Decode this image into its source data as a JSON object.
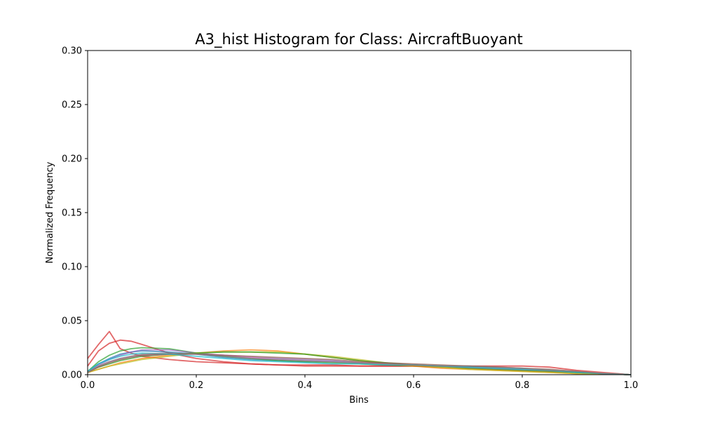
{
  "chart_data": {
    "type": "line",
    "title": "A3_hist Histogram for Class: AircraftBuoyant",
    "xlabel": "Bins",
    "ylabel": "Normalized Frequency",
    "xlim": [
      0,
      1
    ],
    "ylim": [
      0,
      0.3
    ],
    "xticks": [
      "0.0",
      "0.2",
      "0.4",
      "0.6",
      "0.8",
      "1.0"
    ],
    "yticks": [
      "0.00",
      "0.05",
      "0.10",
      "0.15",
      "0.20",
      "0.25",
      "0.30"
    ],
    "grid": false,
    "legend": "none",
    "x": [
      0.0,
      0.02,
      0.04,
      0.06,
      0.08,
      0.1,
      0.15,
      0.2,
      0.25,
      0.3,
      0.35,
      0.4,
      0.45,
      0.5,
      0.55,
      0.6,
      0.65,
      0.7,
      0.75,
      0.8,
      0.85,
      0.9,
      0.95,
      1.0
    ],
    "series": [
      {
        "color": "#d62728",
        "values": [
          0.015,
          0.028,
          0.04,
          0.024,
          0.02,
          0.017,
          0.014,
          0.012,
          0.011,
          0.01,
          0.009,
          0.009,
          0.009,
          0.008,
          0.008,
          0.008,
          0.008,
          0.008,
          0.008,
          0.008,
          0.007,
          0.004,
          0.002,
          0.0
        ]
      },
      {
        "color": "#d62728",
        "values": [
          0.008,
          0.022,
          0.029,
          0.032,
          0.031,
          0.028,
          0.02,
          0.015,
          0.012,
          0.01,
          0.009,
          0.008,
          0.008,
          0.008,
          0.008,
          0.008,
          0.007,
          0.006,
          0.005,
          0.004,
          0.003,
          0.002,
          0.001,
          0.0
        ]
      },
      {
        "color": "#1f77b4",
        "values": [
          0.003,
          0.01,
          0.015,
          0.019,
          0.021,
          0.022,
          0.021,
          0.019,
          0.016,
          0.014,
          0.013,
          0.012,
          0.012,
          0.011,
          0.01,
          0.009,
          0.008,
          0.007,
          0.006,
          0.005,
          0.004,
          0.002,
          0.001,
          0.0
        ]
      },
      {
        "color": "#2ca02c",
        "values": [
          0.003,
          0.012,
          0.018,
          0.022,
          0.024,
          0.025,
          0.024,
          0.02,
          0.017,
          0.015,
          0.013,
          0.012,
          0.011,
          0.01,
          0.009,
          0.008,
          0.007,
          0.006,
          0.005,
          0.004,
          0.003,
          0.002,
          0.001,
          0.0
        ]
      },
      {
        "color": "#9467bd",
        "values": [
          0.002,
          0.009,
          0.014,
          0.018,
          0.021,
          0.023,
          0.023,
          0.02,
          0.018,
          0.016,
          0.015,
          0.014,
          0.013,
          0.011,
          0.01,
          0.009,
          0.008,
          0.007,
          0.006,
          0.005,
          0.004,
          0.002,
          0.001,
          0.0
        ]
      },
      {
        "color": "#ff7f0e",
        "values": [
          0.002,
          0.005,
          0.008,
          0.011,
          0.013,
          0.015,
          0.018,
          0.02,
          0.022,
          0.023,
          0.022,
          0.019,
          0.016,
          0.013,
          0.01,
          0.008,
          0.006,
          0.005,
          0.004,
          0.003,
          0.002,
          0.001,
          0.001,
          0.0
        ]
      },
      {
        "color": "#bcbd22",
        "values": [
          0.002,
          0.005,
          0.008,
          0.01,
          0.012,
          0.014,
          0.017,
          0.02,
          0.021,
          0.021,
          0.021,
          0.019,
          0.017,
          0.014,
          0.011,
          0.009,
          0.007,
          0.005,
          0.004,
          0.003,
          0.002,
          0.001,
          0.001,
          0.0
        ]
      },
      {
        "color": "#2ca02c",
        "values": [
          0.003,
          0.007,
          0.01,
          0.013,
          0.015,
          0.017,
          0.019,
          0.02,
          0.021,
          0.021,
          0.02,
          0.019,
          0.016,
          0.013,
          0.011,
          0.009,
          0.008,
          0.007,
          0.006,
          0.005,
          0.004,
          0.002,
          0.001,
          0.0
        ]
      },
      {
        "color": "#e377c2",
        "values": [
          0.003,
          0.008,
          0.012,
          0.015,
          0.017,
          0.018,
          0.019,
          0.019,
          0.018,
          0.016,
          0.014,
          0.013,
          0.012,
          0.011,
          0.01,
          0.009,
          0.008,
          0.007,
          0.006,
          0.005,
          0.004,
          0.003,
          0.001,
          0.0
        ]
      },
      {
        "color": "#8c564b",
        "values": [
          0.002,
          0.007,
          0.011,
          0.014,
          0.016,
          0.018,
          0.019,
          0.019,
          0.018,
          0.017,
          0.016,
          0.015,
          0.014,
          0.012,
          0.011,
          0.01,
          0.009,
          0.008,
          0.007,
          0.006,
          0.005,
          0.003,
          0.001,
          0.0
        ]
      },
      {
        "color": "#17becf",
        "values": [
          0.003,
          0.01,
          0.014,
          0.017,
          0.019,
          0.02,
          0.019,
          0.017,
          0.015,
          0.013,
          0.012,
          0.011,
          0.01,
          0.01,
          0.009,
          0.009,
          0.008,
          0.007,
          0.006,
          0.005,
          0.004,
          0.002,
          0.001,
          0.0
        ]
      },
      {
        "color": "#7f7f7f",
        "values": [
          0.002,
          0.008,
          0.012,
          0.015,
          0.017,
          0.019,
          0.02,
          0.019,
          0.017,
          0.015,
          0.014,
          0.013,
          0.012,
          0.011,
          0.01,
          0.009,
          0.008,
          0.008,
          0.007,
          0.006,
          0.004,
          0.003,
          0.001,
          0.0
        ]
      }
    ]
  }
}
